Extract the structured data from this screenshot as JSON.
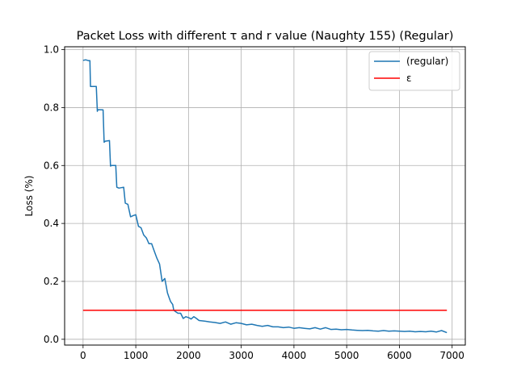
{
  "chart_data": {
    "type": "line",
    "title": "Packet Loss with different τ and r value (Naughty 155) (Regular)",
    "xlabel": "",
    "ylabel": "Loss (%)",
    "xlim": [
      -350,
      7250
    ],
    "ylim": [
      -0.02,
      1.01
    ],
    "xticks": [
      0,
      1000,
      2000,
      3000,
      4000,
      5000,
      6000,
      7000
    ],
    "yticks": [
      0.0,
      0.2,
      0.4,
      0.6,
      0.8,
      1.0
    ],
    "grid": true,
    "legend_position": "upper right",
    "series": [
      {
        "name": "(regular)",
        "color": "#1f77b4",
        "x": [
          0,
          50,
          100,
          130,
          140,
          250,
          270,
          280,
          380,
          400,
          420,
          500,
          520,
          540,
          620,
          640,
          680,
          770,
          800,
          850,
          900,
          950,
          1000,
          1050,
          1100,
          1150,
          1200,
          1250,
          1300,
          1350,
          1400,
          1450,
          1500,
          1550,
          1600,
          1630,
          1660,
          1700,
          1720,
          1760,
          1800,
          1850,
          1900,
          1950,
          2000,
          2050,
          2100,
          2150,
          2200,
          2300,
          2400,
          2500,
          2600,
          2700,
          2800,
          2900,
          3000,
          3100,
          3200,
          3300,
          3400,
          3500,
          3600,
          3700,
          3800,
          3900,
          4000,
          4100,
          4200,
          4300,
          4400,
          4500,
          4600,
          4700,
          4800,
          4900,
          5000,
          5100,
          5200,
          5300,
          5400,
          5500,
          5600,
          5700,
          5800,
          5900,
          6000,
          6100,
          6200,
          6300,
          6400,
          6500,
          6600,
          6700,
          6800,
          6900
        ],
        "y": [
          0.963,
          0.965,
          0.962,
          0.962,
          0.873,
          0.873,
          0.787,
          0.793,
          0.792,
          0.68,
          0.684,
          0.686,
          0.598,
          0.6,
          0.6,
          0.525,
          0.522,
          0.525,
          0.47,
          0.466,
          0.423,
          0.427,
          0.43,
          0.39,
          0.385,
          0.36,
          0.35,
          0.33,
          0.33,
          0.305,
          0.28,
          0.26,
          0.2,
          0.21,
          0.16,
          0.145,
          0.13,
          0.12,
          0.1,
          0.095,
          0.09,
          0.09,
          0.072,
          0.078,
          0.075,
          0.07,
          0.078,
          0.072,
          0.065,
          0.063,
          0.06,
          0.058,
          0.055,
          0.06,
          0.052,
          0.057,
          0.055,
          0.05,
          0.052,
          0.048,
          0.045,
          0.048,
          0.043,
          0.043,
          0.04,
          0.042,
          0.038,
          0.04,
          0.038,
          0.036,
          0.04,
          0.035,
          0.04,
          0.034,
          0.035,
          0.033,
          0.034,
          0.032,
          0.031,
          0.03,
          0.031,
          0.029,
          0.028,
          0.03,
          0.028,
          0.029,
          0.028,
          0.027,
          0.028,
          0.026,
          0.027,
          0.026,
          0.028,
          0.025,
          0.03,
          0.023
        ]
      },
      {
        "name": "ε",
        "color": "#ff0000",
        "x": [
          0,
          6900
        ],
        "y": [
          0.1,
          0.1
        ]
      }
    ]
  }
}
